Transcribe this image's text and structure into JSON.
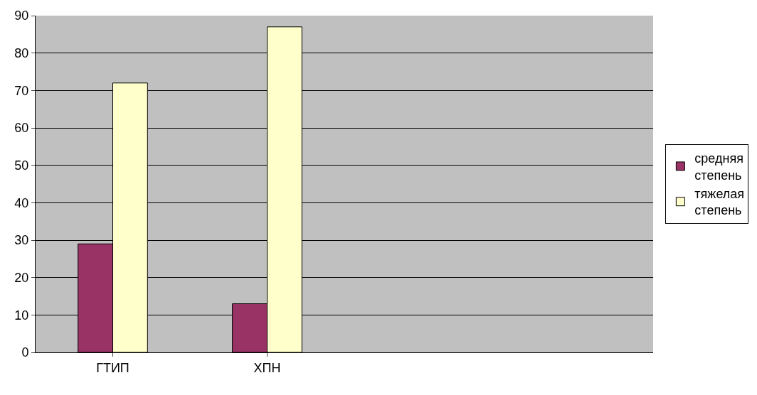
{
  "chart_data": {
    "type": "bar",
    "categories": [
      "ГТИП",
      "ХПН",
      null,
      null
    ],
    "series": [
      {
        "name": "средняя\nстепень",
        "color": "#993366",
        "values": [
          29,
          13,
          null,
          null
        ]
      },
      {
        "name": "тяжелая\nстепень",
        "color": "#ffffcc",
        "values": [
          72,
          87,
          null,
          null
        ]
      }
    ],
    "ylim": [
      0,
      90
    ],
    "yticks": [
      0,
      10,
      20,
      30,
      40,
      50,
      60,
      70,
      80,
      90
    ],
    "grid": "y",
    "legend": "right"
  }
}
